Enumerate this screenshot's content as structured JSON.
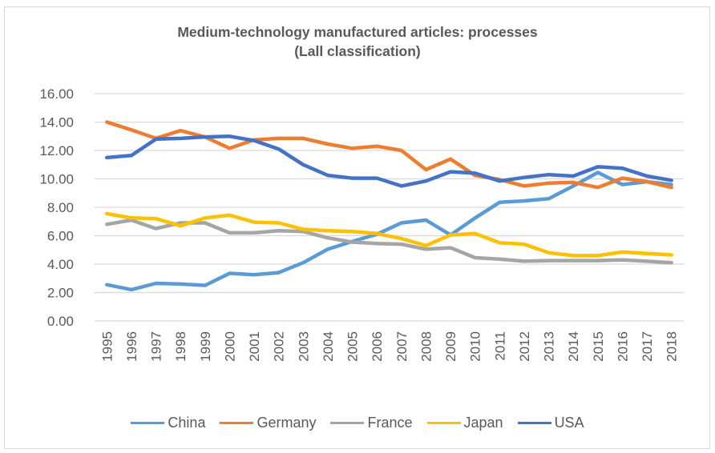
{
  "chart_data": {
    "type": "line",
    "title": "Medium-technology manufactured articles: processes",
    "subtitle": "(Lall classification)",
    "xlabel": "",
    "ylabel": "",
    "ylim": [
      0,
      16
    ],
    "yticks": [
      "0.00",
      "2.00",
      "4.00",
      "6.00",
      "8.00",
      "10.00",
      "12.00",
      "14.00",
      "16.00"
    ],
    "ytick_values": [
      0,
      2,
      4,
      6,
      8,
      10,
      12,
      14,
      16
    ],
    "grid": true,
    "legend_position": "bottom",
    "x": [
      "1995",
      "1996",
      "1997",
      "1998",
      "1999",
      "2000",
      "2001",
      "2002",
      "2003",
      "2004",
      "2005",
      "2006",
      "2007",
      "2008",
      "2009",
      "2010",
      "2011",
      "2012",
      "2013",
      "2014",
      "2015",
      "2016",
      "2017",
      "2018"
    ],
    "series": [
      {
        "name": "China",
        "color": "#5b9bd5",
        "values": [
          2.55,
          2.2,
          2.65,
          2.6,
          2.5,
          3.35,
          3.25,
          3.4,
          4.1,
          5.05,
          5.6,
          6.1,
          6.9,
          7.1,
          6.05,
          7.25,
          8.35,
          8.45,
          8.6,
          9.5,
          10.45,
          9.6,
          9.8,
          9.6
        ]
      },
      {
        "name": "Germany",
        "color": "#ed7d31",
        "values": [
          14.0,
          13.45,
          12.85,
          13.4,
          12.95,
          12.15,
          12.75,
          12.85,
          12.85,
          12.45,
          12.15,
          12.3,
          12.0,
          10.65,
          11.4,
          10.25,
          9.95,
          9.5,
          9.7,
          9.75,
          9.4,
          10.05,
          9.8,
          9.4
        ]
      },
      {
        "name": "France",
        "color": "#a5a5a5",
        "values": [
          6.8,
          7.1,
          6.5,
          6.9,
          6.9,
          6.2,
          6.2,
          6.35,
          6.3,
          5.85,
          5.55,
          5.45,
          5.4,
          5.05,
          5.15,
          4.45,
          4.35,
          4.2,
          4.25,
          4.25,
          4.25,
          4.3,
          4.2,
          4.1
        ]
      },
      {
        "name": "Japan",
        "color": "#ffc000",
        "values": [
          7.55,
          7.25,
          7.2,
          6.7,
          7.25,
          7.45,
          6.95,
          6.9,
          6.45,
          6.35,
          6.3,
          6.15,
          5.8,
          5.3,
          6.05,
          6.15,
          5.5,
          5.4,
          4.8,
          4.6,
          4.6,
          4.85,
          4.75,
          4.65
        ]
      },
      {
        "name": "USA",
        "color": "#4472c4",
        "values": [
          11.5,
          11.65,
          12.8,
          12.85,
          12.95,
          13.0,
          12.7,
          12.1,
          11.0,
          10.25,
          10.05,
          10.05,
          9.5,
          9.85,
          10.5,
          10.4,
          9.85,
          10.1,
          10.3,
          10.2,
          10.85,
          10.75,
          10.2,
          9.9
        ]
      }
    ]
  }
}
